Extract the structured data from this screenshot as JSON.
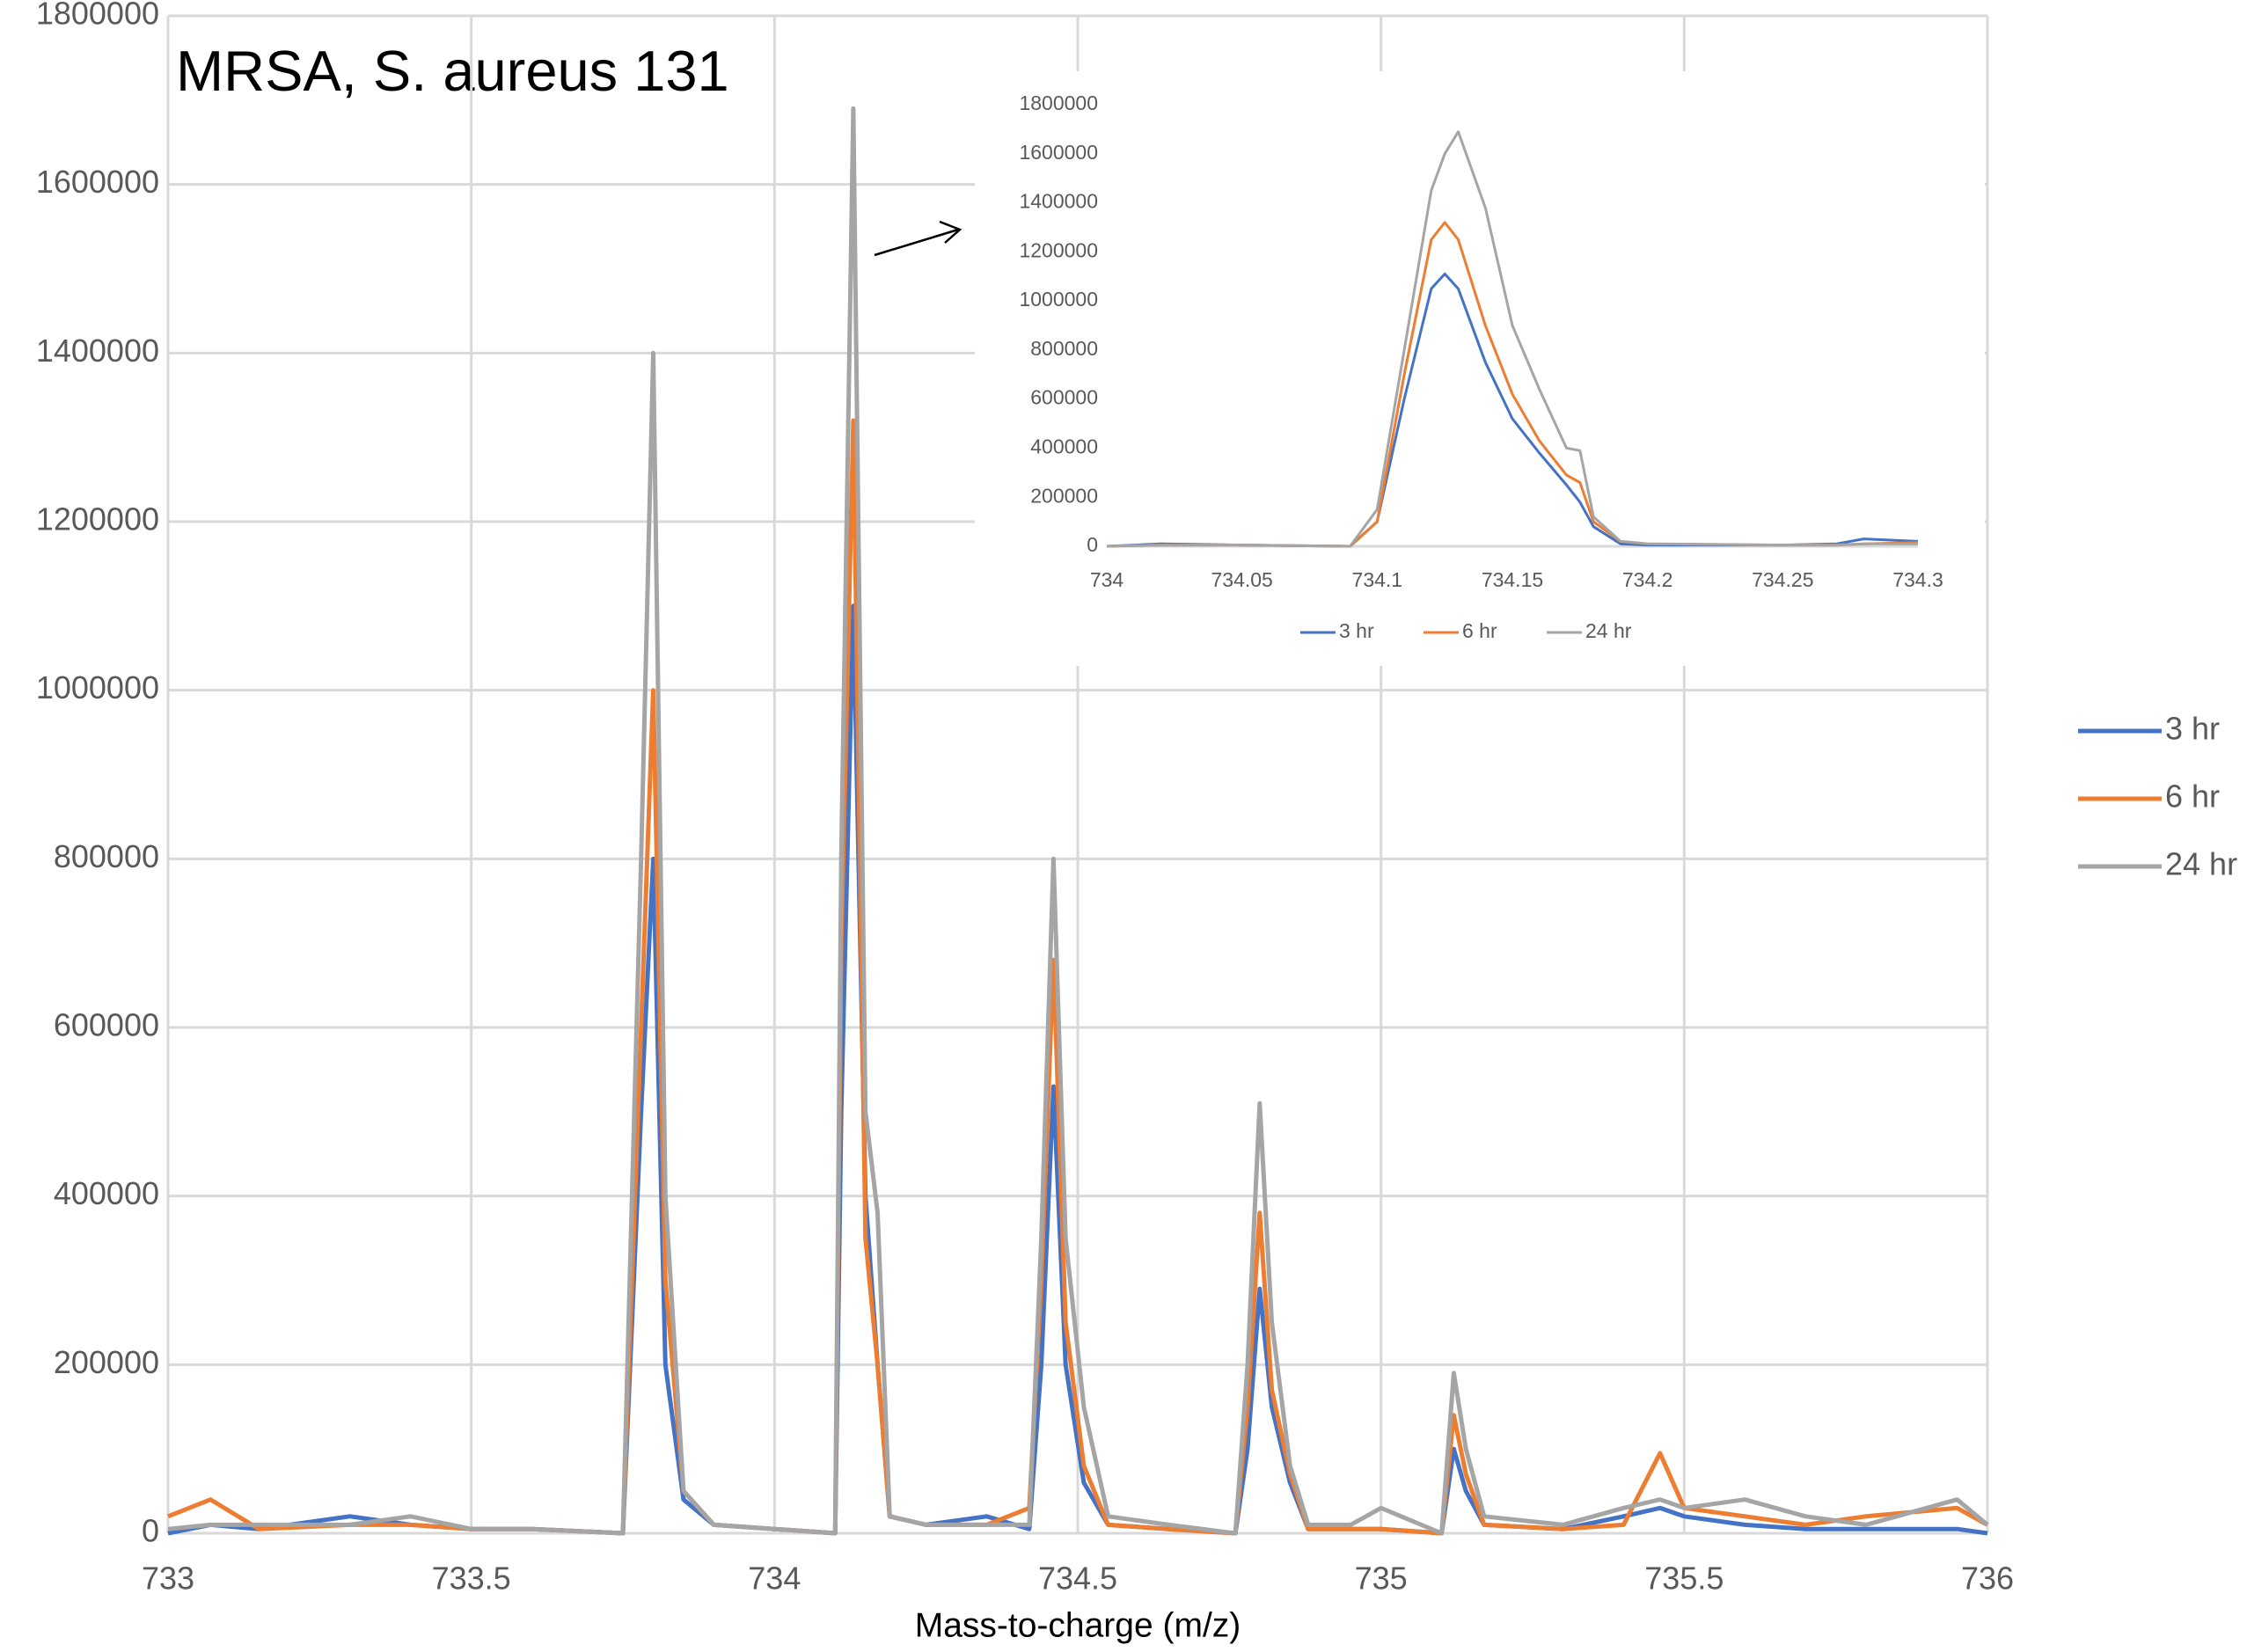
{
  "chart_data": [
    {
      "type": "line",
      "title": "MRSA, S. aureus 131",
      "x_label": "Mass-to-charge (m/z)",
      "x": [
        733,
        733.07,
        733.15,
        733.3,
        733.4,
        733.5,
        733.6,
        733.75,
        733.78,
        733.8,
        733.82,
        733.85,
        733.9,
        734.0,
        734.1,
        734.11,
        734.13,
        734.15,
        734.17,
        734.19,
        734.25,
        734.35,
        734.42,
        734.44,
        734.46,
        734.48,
        734.51,
        734.55,
        734.65,
        734.76,
        734.78,
        734.8,
        734.82,
        734.85,
        734.88,
        734.95,
        735.0,
        735.1,
        735.12,
        735.14,
        735.17,
        735.3,
        735.4,
        735.46,
        735.5,
        735.6,
        735.7,
        735.8,
        735.95,
        736
      ],
      "series": [
        {
          "name": "3 hr",
          "color": "#4472c4",
          "values": [
            0,
            10000,
            5000,
            20000,
            10000,
            5000,
            5000,
            0,
            500000,
            800000,
            200000,
            40000,
            10000,
            5000,
            0,
            500000,
            1100000,
            400000,
            200000,
            20000,
            10000,
            20000,
            5000,
            200000,
            530000,
            200000,
            60000,
            10000,
            5000,
            0,
            100000,
            290000,
            150000,
            60000,
            5000,
            5000,
            5000,
            0,
            100000,
            50000,
            10000,
            5000,
            20000,
            30000,
            20000,
            10000,
            5000,
            5000,
            5000,
            0
          ]
        },
        {
          "name": "6 hr",
          "color": "#ed7d31",
          "values": [
            20000,
            40000,
            5000,
            10000,
            10000,
            5000,
            5000,
            0,
            600000,
            1000000,
            300000,
            50000,
            10000,
            5000,
            0,
            700000,
            1320000,
            350000,
            200000,
            20000,
            10000,
            10000,
            30000,
            300000,
            680000,
            250000,
            80000,
            10000,
            5000,
            0,
            150000,
            380000,
            170000,
            70000,
            5000,
            5000,
            5000,
            0,
            140000,
            70000,
            10000,
            5000,
            10000,
            95000,
            30000,
            20000,
            10000,
            20000,
            30000,
            10000
          ]
        },
        {
          "name": "24 hr",
          "color": "#a5a5a5",
          "values": [
            5000,
            10000,
            10000,
            10000,
            20000,
            5000,
            5000,
            0,
            800000,
            1400000,
            400000,
            50000,
            10000,
            5000,
            0,
            800000,
            1690000,
            500000,
            380000,
            20000,
            10000,
            10000,
            10000,
            350000,
            800000,
            350000,
            150000,
            20000,
            10000,
            0,
            200000,
            510000,
            250000,
            80000,
            10000,
            10000,
            30000,
            0,
            190000,
            100000,
            20000,
            10000,
            30000,
            40000,
            30000,
            40000,
            20000,
            10000,
            40000,
            10000
          ]
        }
      ],
      "xlim": [
        733,
        736
      ],
      "xticks": [
        733,
        733.5,
        734,
        734.5,
        735,
        735.5,
        736
      ],
      "ylim": [
        0,
        1800000
      ],
      "yticks": [
        0,
        200000,
        400000,
        600000,
        800000,
        1000000,
        1200000,
        1400000,
        1600000,
        1800000
      ],
      "grid": true,
      "legend": "right"
    },
    {
      "type": "line",
      "x": [
        734,
        734.02,
        734.05,
        734.09,
        734.1,
        734.11,
        734.12,
        734.125,
        734.13,
        734.14,
        734.15,
        734.16,
        734.17,
        734.175,
        734.18,
        734.19,
        734.2,
        734.25,
        734.27,
        734.28,
        734.3
      ],
      "series": [
        {
          "name": "3 hr",
          "color": "#4472c4",
          "values": [
            0,
            10000,
            5000,
            0,
            100000,
            600000,
            1050000,
            1110000,
            1050000,
            750000,
            520000,
            380000,
            250000,
            180000,
            80000,
            10000,
            5000,
            5000,
            10000,
            30000,
            20000
          ]
        },
        {
          "name": "6 hr",
          "color": "#ed7d31",
          "values": [
            0,
            5000,
            5000,
            0,
            100000,
            700000,
            1250000,
            1320000,
            1250000,
            900000,
            620000,
            430000,
            290000,
            260000,
            100000,
            20000,
            10000,
            5000,
            5000,
            10000,
            15000
          ]
        },
        {
          "name": "24 hr",
          "color": "#a5a5a5",
          "values": [
            0,
            5000,
            5000,
            0,
            150000,
            800000,
            1450000,
            1600000,
            1690000,
            1380000,
            900000,
            640000,
            400000,
            390000,
            120000,
            20000,
            10000,
            5000,
            5000,
            10000,
            10000
          ]
        }
      ],
      "xlim": [
        734,
        734.3
      ],
      "xticks": [
        734,
        734.05,
        734.1,
        734.15,
        734.2,
        734.25,
        734.3
      ],
      "ylim": [
        0,
        1800000
      ],
      "yticks": [
        0,
        200000,
        400000,
        600000,
        800000,
        1000000,
        1200000,
        1400000,
        1600000,
        1800000
      ],
      "grid": false,
      "legend": "bottom"
    }
  ]
}
